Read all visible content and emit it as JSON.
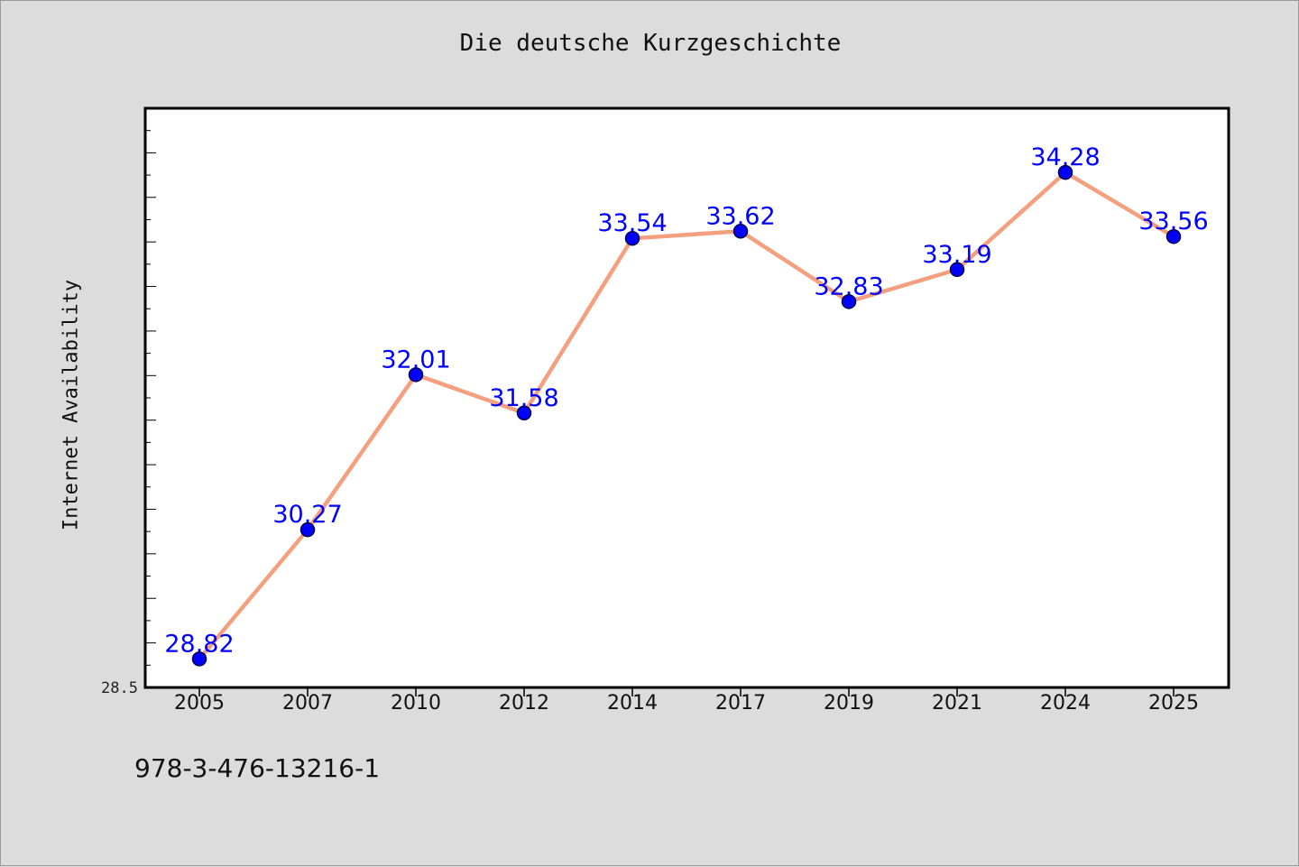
{
  "chart_data": {
    "type": "line",
    "title": "Die deutsche Kurzgeschichte",
    "xlabel": "",
    "ylabel": "Internet Availability",
    "categories": [
      "2005",
      "2007",
      "2010",
      "2012",
      "2014",
      "2017",
      "2019",
      "2021",
      "2024",
      "2025"
    ],
    "series": [
      {
        "values": [
          28.82,
          30.27,
          32.01,
          31.58,
          33.54,
          33.62,
          32.83,
          33.19,
          34.28,
          33.56
        ],
        "data_labels": [
          "28.82",
          "30.27",
          "32.01",
          "31.58",
          "33.54",
          "33.62",
          "32.83",
          "33.19",
          "34.28",
          "33.56"
        ]
      }
    ],
    "ylim": [
      28.5,
      35.0
    ],
    "y_tick_labels": [
      "28.5"
    ],
    "grid": false,
    "legend": "none",
    "colors": {
      "line": "#f4a07e",
      "marker": "#0000ff",
      "data_label": "#0000ff",
      "plot_background": "#ffffff",
      "page_background": "#dcdcdc"
    }
  },
  "footer": {
    "code": "978-3-476-13216-1"
  }
}
